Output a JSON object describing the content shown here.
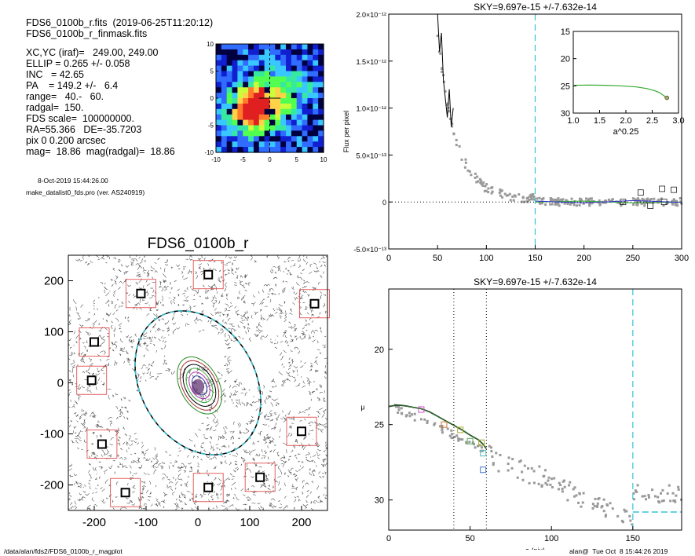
{
  "header": {
    "line1": "FDS6_0100b_r.fits  (2019-06-25T11:20:12)",
    "line2": "FDS6_0100b_r_finmask.fits",
    "params": [
      "XC,YC (iraf)=   249.00, 249.00",
      "ELLIP = 0.265 +/- 0.058",
      "INC   = 42.65",
      "PA    = 149.2 +/-   6.4",
      "range=   40.-   60.",
      "radgal=  150.",
      "FDS scale=  100000000.",
      "RA=55.366   DE=-35.7203",
      "pix 0 0.200 arcsec",
      "mag=  18.86  mag(radgal)=  18.86"
    ],
    "date": "8-Oct-2019 15:44:26.00",
    "program": "make_datalist0_fds.pro (ver. AS240919)"
  },
  "footer": {
    "path": "/data/alan/fds2/FDS6_0100b_r_magplot",
    "user": "alan@  Tue Oct  8 15:44:26 2019"
  },
  "colors": {
    "sky": "#33c3d8",
    "ellipse": "#2a8fb0",
    "green": "#33aa33",
    "mask": "#e05050"
  },
  "chart_data": [
    {
      "type": "heatmap",
      "xlim": [
        -10,
        10
      ],
      "ylim": [
        -10,
        10
      ],
      "xticks": [
        "-10",
        "-5",
        "0",
        "5",
        "10"
      ],
      "yticks": [
        "10",
        "5",
        "0",
        "-5",
        "-10"
      ],
      "peak": [
        -3,
        -2
      ]
    },
    {
      "type": "image",
      "title": "FDS6_0100b_r",
      "xlim": [
        -250,
        250
      ],
      "ylim": [
        -250,
        250
      ],
      "xticks": [
        "-200",
        "-100",
        "0",
        "100",
        "200"
      ],
      "yticks": [
        "200",
        "100",
        "0",
        "-100",
        "-200"
      ],
      "ellipse": {
        "a": 150,
        "ellip": 0.265,
        "pa": 149.2
      },
      "masked_sources": [
        [
          20,
          212
        ],
        [
          -110,
          175
        ],
        [
          -200,
          80
        ],
        [
          -205,
          5
        ],
        [
          -185,
          -120
        ],
        [
          -140,
          -215
        ],
        [
          20,
          -205
        ],
        [
          120,
          -185
        ],
        [
          200,
          -95
        ],
        [
          225,
          155
        ]
      ]
    },
    {
      "type": "scatter",
      "title": "SKY=9.697e-15 +/-7.632e-14",
      "ylabel": "Flux per pixel",
      "xlim": [
        0,
        300
      ],
      "ylim": [
        -5e-13,
        2e-12
      ],
      "xticks": [
        "0",
        "50",
        "100",
        "150",
        "200",
        "250",
        "300"
      ],
      "yticks": [
        "-5.0×10⁻¹³",
        "0",
        "5.0×10⁻¹³",
        "1.0×10⁻¹²",
        "1.5×10⁻¹²",
        "2.0×10⁻¹²"
      ],
      "vline": 150,
      "profile_x": [
        50,
        52,
        54,
        56,
        58,
        60,
        62,
        64,
        66
      ],
      "profile_y": [
        2e-12,
        1.6e-12,
        1.8e-12,
        1.3e-12,
        1.1e-12,
        9e-13,
        1.2e-12,
        8e-13,
        1e-12
      ],
      "boxes": [
        [
          240,
          0
        ],
        [
          258,
          1e-13
        ],
        [
          268,
          -4e-14
        ],
        [
          280,
          1.4e-13
        ],
        [
          292,
          1.3e-13
        ],
        [
          282,
          0
        ]
      ],
      "inset": {
        "xlabel": "a^0.25",
        "xlim": [
          1.0,
          3.0
        ],
        "ylim": [
          15,
          30
        ],
        "xticks": [
          "1.0",
          "1.5",
          "2.0",
          "2.5",
          "3.0"
        ],
        "yticks": [
          "15",
          "20",
          "25",
          "30"
        ],
        "x": [
          1.0,
          1.3,
          1.6,
          1.9,
          2.2,
          2.4,
          2.55,
          2.65,
          2.72,
          2.78
        ],
        "y": [
          24.9,
          24.85,
          24.9,
          25.0,
          25.2,
          25.5,
          25.9,
          26.3,
          26.8,
          27.2
        ]
      }
    },
    {
      "type": "scatter",
      "title": "SKY=9.697e-15 +/-7.632e-14",
      "xlabel": "a (pix)",
      "ylabel": "μ",
      "xlim": [
        0,
        180
      ],
      "ylim": [
        32,
        16
      ],
      "xticks": [
        "0",
        "50",
        "100",
        "150"
      ],
      "yticks": [
        "20",
        "25",
        "30"
      ],
      "vlines_dotted": [
        40,
        60
      ],
      "vline_dashed": 150,
      "sky_level": 30.8,
      "profile_x": [
        0,
        5,
        10,
        15,
        20,
        25,
        30,
        35,
        40,
        45,
        50,
        55,
        58,
        60
      ],
      "profile_y": [
        23.8,
        23.7,
        23.75,
        23.85,
        23.95,
        24.15,
        24.45,
        24.75,
        25.05,
        25.35,
        25.7,
        26.0,
        26.3,
        26.6
      ],
      "boxes": [
        [
          20,
          24.0
        ],
        [
          34,
          25.0
        ],
        [
          44,
          25.35
        ],
        [
          50,
          26.1
        ],
        [
          57,
          26.2
        ],
        [
          58,
          26.9
        ],
        [
          58,
          28.0
        ]
      ]
    }
  ]
}
